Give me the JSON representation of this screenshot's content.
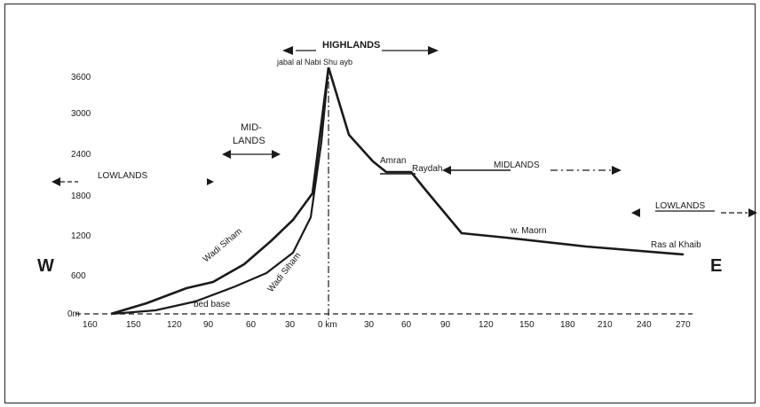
{
  "colors": {
    "ink": "#1a1a1a",
    "frame": "#222222",
    "background": "#ffffff"
  },
  "y_ticks": [
    "0m",
    "600",
    "1200",
    "1800",
    "2400",
    "3000",
    "3600"
  ],
  "x_ticks": [
    "160",
    "150",
    "120",
    "90",
    "60",
    "30",
    "0 km",
    "30",
    "60",
    "90",
    "120",
    "150",
    "180",
    "210",
    "240",
    "270"
  ],
  "labels": {
    "west": "W",
    "east": "E",
    "highlands": "HIGHLANDS",
    "jabal": "jabal al Nabi Shu ayb",
    "midlands_w_1": "MID-",
    "midlands_w_2": "LANDS",
    "lowlands_w": "LOWLANDS",
    "midlands_e": "MIDLANDS",
    "lowlands_e": "LOWLANDS",
    "wadi_siham_upper": "Wadi Siham",
    "wadi_siham_lower": "Wadi Siham",
    "bed_base": "bed base",
    "amran": "Amran",
    "raydah": "Raydah",
    "wadi_maorn": "w. Maorn",
    "ras_al_khaib": "Ras al Khaib"
  },
  "profile": {
    "peak_elevation_m": 3600,
    "east_profile_points_km_m": [
      [
        0,
        3600
      ],
      [
        10,
        2700
      ],
      [
        40,
        2250
      ],
      [
        60,
        2250
      ],
      [
        75,
        1900
      ],
      [
        100,
        1200
      ],
      [
        150,
        1150
      ],
      [
        220,
        1000
      ],
      [
        270,
        900
      ]
    ],
    "west_upper_points_km_m": [
      [
        -160,
        0
      ],
      [
        -130,
        150
      ],
      [
        -110,
        350
      ],
      [
        -90,
        450
      ],
      [
        -70,
        650
      ],
      [
        -50,
        950
      ],
      [
        -30,
        1250
      ],
      [
        -10,
        1800
      ],
      [
        0,
        3600
      ]
    ],
    "west_lower_points_km_m": [
      [
        -160,
        0
      ],
      [
        -120,
        100
      ],
      [
        -90,
        250
      ],
      [
        -60,
        450
      ],
      [
        -35,
        700
      ],
      [
        -15,
        1200
      ],
      [
        -5,
        2200
      ],
      [
        0,
        3600
      ]
    ]
  }
}
